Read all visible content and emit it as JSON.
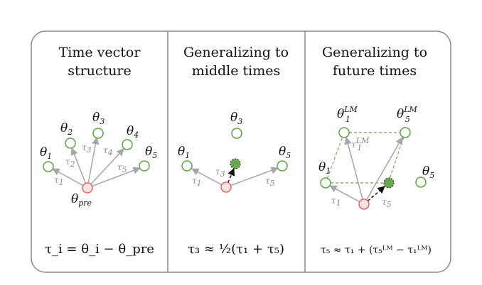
{
  "colors": {
    "frame": "#8a8a8a",
    "node_green": "#5fa34a",
    "node_red": "#e06a6a",
    "node_red_fill": "#fde3e3",
    "filled_green": "#6aa84f",
    "arrow_gray": "#a6a6a6",
    "dashed_green": "#7c9c57"
  },
  "panels": [
    {
      "title_line1": "Time vector",
      "title_line2": "structure",
      "nodes": [
        "θ",
        "θ",
        "θ",
        "θ",
        "θ"
      ],
      "node_subs": [
        "1",
        "2",
        "3",
        "4",
        "5"
      ],
      "pre_label": "θ",
      "pre_sub": "pre",
      "taus": [
        "τ",
        "τ",
        "τ",
        "τ",
        "τ"
      ],
      "tau_subs": [
        "1",
        "2",
        "3",
        "4",
        "5"
      ],
      "equation": "τ_i = θ_i − θ_pre"
    },
    {
      "title_line1": "Generalizing to",
      "title_line2": "middle times",
      "nodes": [
        "θ",
        "θ",
        "θ"
      ],
      "node_subs": [
        "1",
        "3",
        "5"
      ],
      "taus": [
        "τ",
        "τ",
        "τ"
      ],
      "tau_subs": [
        "1",
        "3",
        "5"
      ],
      "equation": "τ₃ ≈ ½(τ₁ + τ₅)"
    },
    {
      "title_line1": "Generalizing to",
      "title_line2": "future times",
      "nodes": [
        "θ",
        "θ",
        "θ",
        "θ"
      ],
      "node_subs": [
        "1",
        "5",
        "1",
        "5"
      ],
      "node_sups": [
        "LM",
        "LM"
      ],
      "taus": [
        "τ",
        "τ",
        "τ"
      ],
      "tau_subs": [
        "1",
        "1",
        "5"
      ],
      "tau_sups": [
        "LM"
      ],
      "equation": "τ₅ ≈ τ₁ + (τ₅ᴸᴹ − τ₁ᴸᴹ)"
    }
  ]
}
